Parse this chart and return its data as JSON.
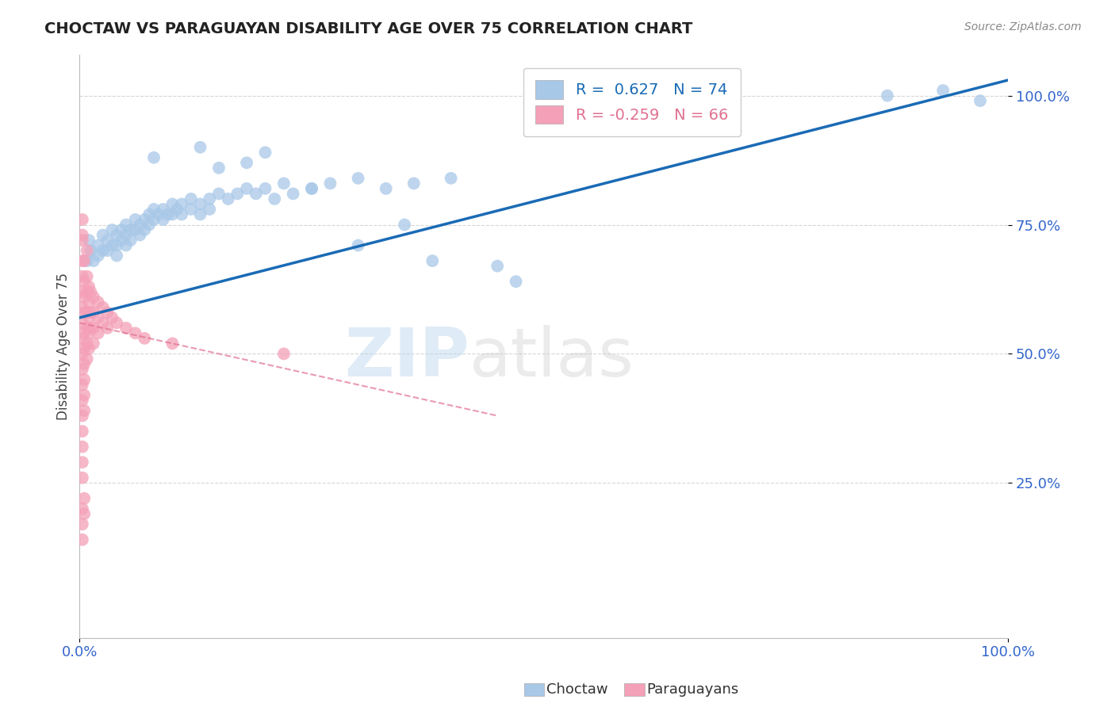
{
  "title": "CHOCTAW VS PARAGUAYAN DISABILITY AGE OVER 75 CORRELATION CHART",
  "source": "Source: ZipAtlas.com",
  "ylabel": "Disability Age Over 75",
  "xlim": [
    0.0,
    1.0
  ],
  "ylim": [
    -0.05,
    1.08
  ],
  "yticks": [
    0.25,
    0.5,
    0.75,
    1.0
  ],
  "ytick_labels": [
    "25.0%",
    "50.0%",
    "75.0%",
    "100.0%"
  ],
  "xtick_labels": [
    "0.0%",
    "100.0%"
  ],
  "choctaw_color": "#a8c8e8",
  "paraguayan_color": "#f4a0b8",
  "choctaw_line_color": "#1a6bb5",
  "paraguayan_line_color": "#e07090",
  "paraguayan_line_dash": true,
  "watermark_zip": "ZIP",
  "watermark_atlas": "atlas",
  "legend_choctaw_R": "0.627",
  "legend_choctaw_N": "74",
  "legend_paraguayan_R": "-0.259",
  "legend_paraguayan_N": "66",
  "choctaw_line_x0": 0.0,
  "choctaw_line_y0": 0.57,
  "choctaw_line_x1": 1.0,
  "choctaw_line_y1": 1.03,
  "paraguayan_line_x0": 0.0,
  "paraguayan_line_y0": 0.56,
  "paraguayan_line_x1": 0.45,
  "paraguayan_line_y1": 0.38,
  "choctaw_points": [
    [
      0.008,
      0.68
    ],
    [
      0.01,
      0.72
    ],
    [
      0.012,
      0.7
    ],
    [
      0.015,
      0.68
    ],
    [
      0.02,
      0.71
    ],
    [
      0.02,
      0.69
    ],
    [
      0.025,
      0.73
    ],
    [
      0.025,
      0.7
    ],
    [
      0.03,
      0.72
    ],
    [
      0.03,
      0.7
    ],
    [
      0.035,
      0.74
    ],
    [
      0.035,
      0.71
    ],
    [
      0.04,
      0.73
    ],
    [
      0.04,
      0.71
    ],
    [
      0.04,
      0.69
    ],
    [
      0.045,
      0.74
    ],
    [
      0.045,
      0.72
    ],
    [
      0.05,
      0.75
    ],
    [
      0.05,
      0.73
    ],
    [
      0.05,
      0.71
    ],
    [
      0.055,
      0.74
    ],
    [
      0.055,
      0.72
    ],
    [
      0.06,
      0.76
    ],
    [
      0.06,
      0.74
    ],
    [
      0.065,
      0.75
    ],
    [
      0.065,
      0.73
    ],
    [
      0.07,
      0.76
    ],
    [
      0.07,
      0.74
    ],
    [
      0.075,
      0.77
    ],
    [
      0.075,
      0.75
    ],
    [
      0.08,
      0.78
    ],
    [
      0.08,
      0.76
    ],
    [
      0.085,
      0.77
    ],
    [
      0.09,
      0.78
    ],
    [
      0.09,
      0.76
    ],
    [
      0.095,
      0.77
    ],
    [
      0.1,
      0.79
    ],
    [
      0.1,
      0.77
    ],
    [
      0.105,
      0.78
    ],
    [
      0.11,
      0.79
    ],
    [
      0.11,
      0.77
    ],
    [
      0.12,
      0.8
    ],
    [
      0.12,
      0.78
    ],
    [
      0.13,
      0.79
    ],
    [
      0.13,
      0.77
    ],
    [
      0.14,
      0.8
    ],
    [
      0.14,
      0.78
    ],
    [
      0.15,
      0.81
    ],
    [
      0.16,
      0.8
    ],
    [
      0.17,
      0.81
    ],
    [
      0.18,
      0.82
    ],
    [
      0.19,
      0.81
    ],
    [
      0.2,
      0.82
    ],
    [
      0.21,
      0.8
    ],
    [
      0.22,
      0.83
    ],
    [
      0.23,
      0.81
    ],
    [
      0.25,
      0.82
    ],
    [
      0.27,
      0.83
    ],
    [
      0.3,
      0.84
    ],
    [
      0.33,
      0.82
    ],
    [
      0.36,
      0.83
    ],
    [
      0.4,
      0.84
    ],
    [
      0.08,
      0.88
    ],
    [
      0.13,
      0.9
    ],
    [
      0.15,
      0.86
    ],
    [
      0.18,
      0.87
    ],
    [
      0.2,
      0.89
    ],
    [
      0.25,
      0.82
    ],
    [
      0.3,
      0.71
    ],
    [
      0.35,
      0.75
    ],
    [
      0.38,
      0.68
    ],
    [
      0.45,
      0.67
    ],
    [
      0.47,
      0.64
    ],
    [
      0.87,
      1.0
    ],
    [
      0.93,
      1.01
    ],
    [
      0.97,
      0.99
    ]
  ],
  "paraguayan_points": [
    [
      0.003,
      0.72
    ],
    [
      0.003,
      0.68
    ],
    [
      0.003,
      0.65
    ],
    [
      0.003,
      0.62
    ],
    [
      0.003,
      0.59
    ],
    [
      0.003,
      0.56
    ],
    [
      0.003,
      0.53
    ],
    [
      0.003,
      0.5
    ],
    [
      0.003,
      0.47
    ],
    [
      0.003,
      0.44
    ],
    [
      0.003,
      0.41
    ],
    [
      0.003,
      0.38
    ],
    [
      0.003,
      0.35
    ],
    [
      0.003,
      0.32
    ],
    [
      0.003,
      0.29
    ],
    [
      0.003,
      0.26
    ],
    [
      0.005,
      0.68
    ],
    [
      0.005,
      0.64
    ],
    [
      0.005,
      0.61
    ],
    [
      0.005,
      0.58
    ],
    [
      0.005,
      0.54
    ],
    [
      0.005,
      0.51
    ],
    [
      0.005,
      0.48
    ],
    [
      0.005,
      0.45
    ],
    [
      0.005,
      0.42
    ],
    [
      0.005,
      0.39
    ],
    [
      0.008,
      0.65
    ],
    [
      0.008,
      0.62
    ],
    [
      0.008,
      0.58
    ],
    [
      0.008,
      0.55
    ],
    [
      0.008,
      0.52
    ],
    [
      0.008,
      0.49
    ],
    [
      0.01,
      0.63
    ],
    [
      0.01,
      0.6
    ],
    [
      0.01,
      0.57
    ],
    [
      0.01,
      0.54
    ],
    [
      0.01,
      0.51
    ],
    [
      0.012,
      0.62
    ],
    [
      0.012,
      0.58
    ],
    [
      0.012,
      0.55
    ],
    [
      0.015,
      0.61
    ],
    [
      0.015,
      0.58
    ],
    [
      0.015,
      0.55
    ],
    [
      0.015,
      0.52
    ],
    [
      0.02,
      0.6
    ],
    [
      0.02,
      0.57
    ],
    [
      0.02,
      0.54
    ],
    [
      0.025,
      0.59
    ],
    [
      0.025,
      0.56
    ],
    [
      0.03,
      0.58
    ],
    [
      0.03,
      0.55
    ],
    [
      0.035,
      0.57
    ],
    [
      0.04,
      0.56
    ],
    [
      0.05,
      0.55
    ],
    [
      0.06,
      0.54
    ],
    [
      0.07,
      0.53
    ],
    [
      0.003,
      0.2
    ],
    [
      0.003,
      0.17
    ],
    [
      0.003,
      0.14
    ],
    [
      0.005,
      0.22
    ],
    [
      0.005,
      0.19
    ],
    [
      0.1,
      0.52
    ],
    [
      0.22,
      0.5
    ],
    [
      0.003,
      0.76
    ],
    [
      0.003,
      0.73
    ],
    [
      0.008,
      0.7
    ]
  ]
}
